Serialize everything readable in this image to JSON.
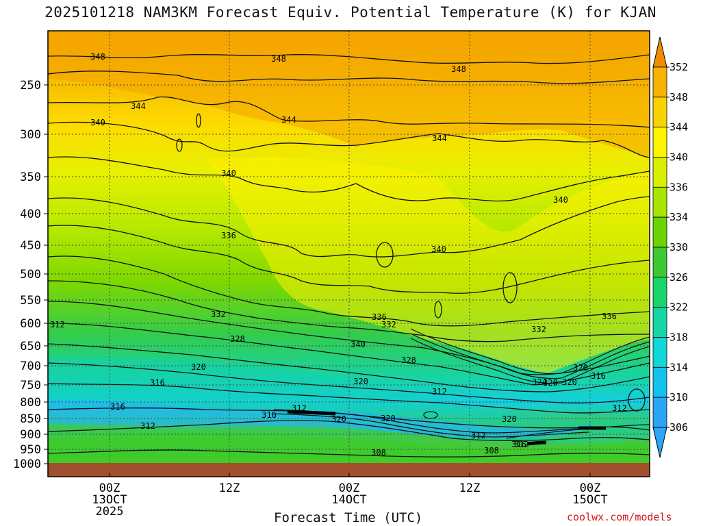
{
  "title": "2025101218 NAM3KM Forecast Equiv. Potential Temperature (K) for KJAN",
  "xaxis_title": "Forecast Time (UTC)",
  "credit": "coolwx.com/models",
  "colors": {
    "ground": "#a24f2d",
    "scale_low": "#22ccee",
    "scale_mid": "#48c830",
    "scale_high": "#ff9900"
  },
  "chart_data": {
    "type": "heatmap",
    "title": "2025101218 NAM3KM Forecast Equiv. Potential Temperature (K) for KJAN",
    "xlabel": "Forecast Time (UTC)",
    "ylabel": "",
    "y_ticks": [
      "250",
      "300",
      "350",
      "400",
      "450",
      "500",
      "550",
      "600",
      "650",
      "700",
      "750",
      "800",
      "850",
      "900",
      "950",
      "1000"
    ],
    "x_ticks": [
      {
        "lines": [
          "00Z",
          "13OCT",
          "2025"
        ]
      },
      {
        "lines": [
          "12Z"
        ]
      },
      {
        "lines": [
          "00Z",
          "14OCT"
        ]
      },
      {
        "lines": [
          "12Z"
        ]
      },
      {
        "lines": [
          "00Z",
          "15OCT"
        ]
      }
    ],
    "colorbar": {
      "labels": [
        352,
        348,
        344,
        340,
        336,
        334,
        330,
        326,
        322,
        318,
        314,
        310,
        306
      ],
      "colors": [
        "#f08c00",
        "#f6b400",
        "#f9d300",
        "#fff300",
        "#d8f000",
        "#a8e600",
        "#6cd400",
        "#3ec832",
        "#1ad46a",
        "#16d6a6",
        "#10d8d8",
        "#12c2ec",
        "#2aa6f6"
      ]
    },
    "contour_labels": [
      "348",
      "348",
      "348",
      "344",
      "344",
      "344",
      "340",
      "340",
      "340",
      "340",
      "336",
      "336",
      "336",
      "332",
      "332",
      "332",
      "340",
      "328",
      "328",
      "320",
      "320",
      "320",
      "316",
      "316",
      "316",
      "316",
      "312",
      "312",
      "312",
      "312",
      "312",
      "312",
      "320",
      "320",
      "320",
      "308",
      "308",
      "312",
      "324",
      "320",
      "320",
      "316"
    ]
  }
}
